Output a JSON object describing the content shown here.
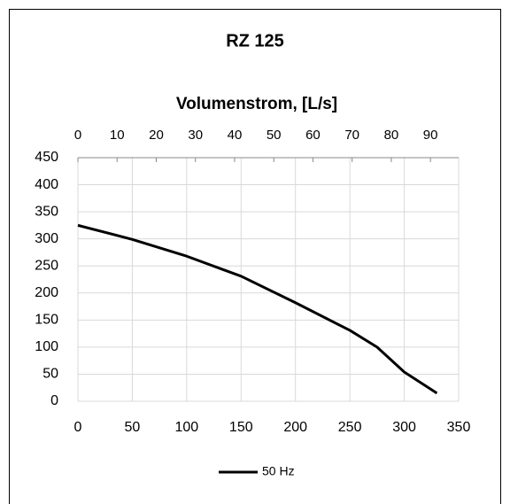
{
  "chart_data": {
    "type": "line",
    "title": "RZ 125",
    "x2_label": "Volumenstrom, [L/s]",
    "x": [
      0,
      50,
      100,
      150,
      200,
      250,
      275,
      300,
      330
    ],
    "series": [
      {
        "name": "50 Hz",
        "color": "#000000",
        "values": [
          325,
          299,
          268,
          231,
          182,
          131,
          100,
          54,
          15
        ]
      }
    ],
    "xlim": [
      0,
      350
    ],
    "xticks": [
      0,
      50,
      100,
      150,
      200,
      250,
      300,
      350
    ],
    "x2lim": [
      0,
      97.2
    ],
    "x2ticks": [
      0,
      10,
      20,
      30,
      40,
      50,
      60,
      70,
      80,
      90
    ],
    "ylim": [
      0,
      450
    ],
    "yticks": [
      0,
      50,
      100,
      150,
      200,
      250,
      300,
      350,
      400,
      450
    ],
    "grid": true,
    "legend": "bottom"
  }
}
